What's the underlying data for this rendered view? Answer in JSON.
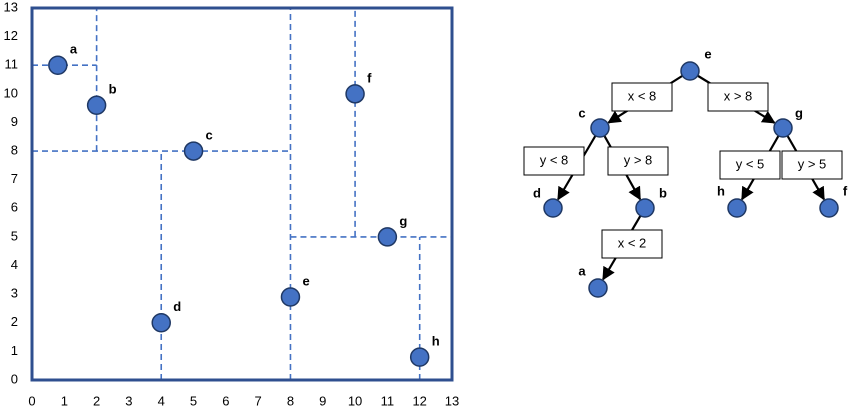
{
  "chart_data": {
    "type": "scatter",
    "labels": [
      "a",
      "b",
      "c",
      "d",
      "e",
      "f",
      "g",
      "h"
    ],
    "x": [
      0.8,
      2,
      5,
      4,
      8,
      10,
      11,
      12
    ],
    "y": [
      11,
      9.6,
      8,
      2,
      2.9,
      10,
      5,
      0.8
    ],
    "color": "#4472c4",
    "xlim": [
      0,
      13
    ],
    "ylim": [
      0,
      13
    ],
    "xticks": [
      0,
      1,
      2,
      3,
      4,
      5,
      6,
      7,
      8,
      9,
      10,
      11,
      12,
      13
    ],
    "yticks": [
      0,
      1,
      2,
      3,
      4,
      5,
      6,
      7,
      8,
      9,
      10,
      11,
      12,
      13
    ],
    "partitions": [
      [
        2,
        8,
        2,
        13
      ],
      [
        0,
        11,
        2,
        11
      ],
      [
        0,
        8,
        8,
        8
      ],
      [
        4,
        0,
        4,
        8
      ],
      [
        8,
        0,
        8,
        13
      ],
      [
        10,
        5,
        10,
        13
      ],
      [
        8,
        5,
        13,
        5
      ],
      [
        12,
        0,
        12,
        5
      ]
    ]
  },
  "tree": {
    "nodes": [
      "e",
      "c",
      "g",
      "d",
      "b",
      "h",
      "f",
      "a"
    ],
    "edges": [
      "x < 8",
      "x > 8",
      "y < 8",
      "y > 8",
      "y < 5",
      "y > 5",
      "x < 2"
    ]
  }
}
